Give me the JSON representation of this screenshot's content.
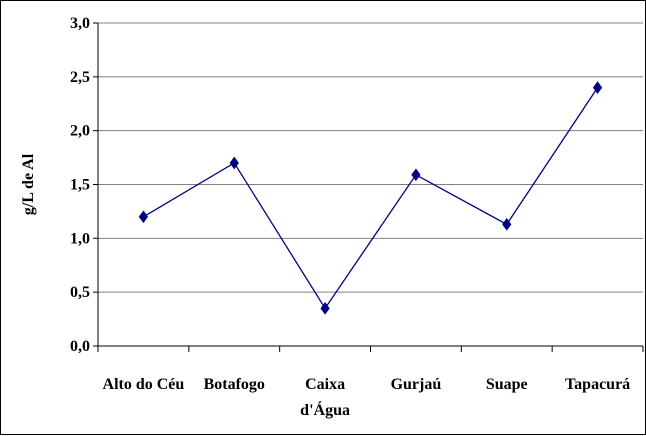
{
  "chart_data": {
    "type": "line",
    "title": "",
    "xlabel": "",
    "ylabel": "g/L de Al",
    "categories": [
      "Alto do Céu",
      "Botafogo",
      "Caixa d'Água",
      "Gurjaú",
      "Suape",
      "Tapacurá"
    ],
    "category_lines": [
      [
        "Alto do Céu"
      ],
      [
        "Botafogo"
      ],
      [
        "Caixa",
        "d'Água"
      ],
      [
        "Gurjaú"
      ],
      [
        "Suape"
      ],
      [
        "Tapacurá"
      ]
    ],
    "series": [
      {
        "values": [
          1.2,
          1.7,
          0.35,
          1.59,
          1.13,
          2.4
        ],
        "color": "#000080",
        "marker": "diamond"
      }
    ],
    "ylim": [
      0,
      3.0
    ],
    "yticks": [
      0.0,
      0.5,
      1.0,
      1.5,
      2.0,
      2.5,
      3.0
    ],
    "ytick_labels": [
      "0,0",
      "0,5",
      "1,0",
      "1,5",
      "2,0",
      "2,5",
      "3,0"
    ],
    "grid": true,
    "grid_axis": "y",
    "legend": "none"
  }
}
